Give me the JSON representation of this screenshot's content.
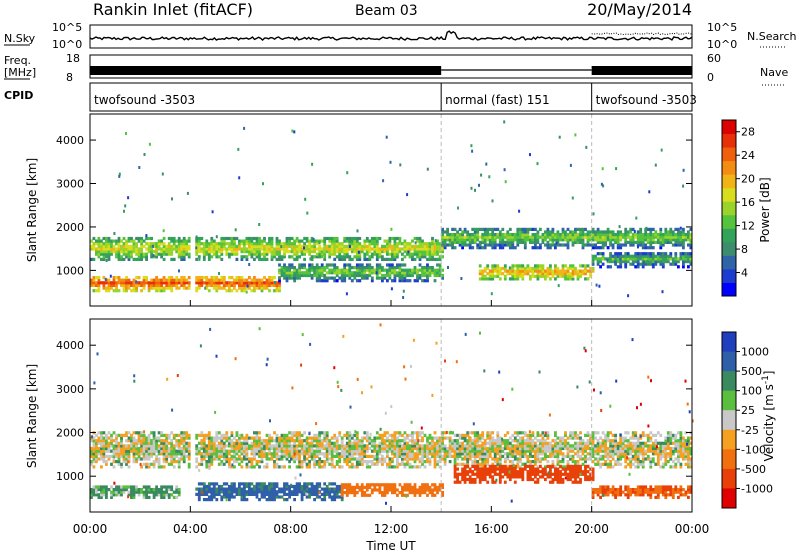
{
  "header": {
    "station": "Rankin Inlet (fitACF)",
    "beam": "Beam 03",
    "date": "20/May/2014"
  },
  "strips": {
    "nsky_label": "N.Sky",
    "nsearch_label": "N.Search",
    "nsky_ticks": [
      "10^5",
      "10^0"
    ],
    "nsearch_ticks": [
      "10^5",
      "10^0"
    ],
    "freq_label_line1": "Freq.",
    "freq_label_line2": "[MHz]",
    "freq_ticks": [
      "18",
      "8"
    ],
    "nave_label": "Nave",
    "nave_ticks": [
      "60",
      "0"
    ],
    "cpid_label": "CPID",
    "cpid_segments": [
      {
        "name": "twofsound -3503",
        "start_hour": 0,
        "end_hour": 14
      },
      {
        "name": "normal (fast) 151",
        "start_hour": 14,
        "end_hour": 20
      },
      {
        "name": "twofsound -3503",
        "start_hour": 20,
        "end_hour": 24
      }
    ]
  },
  "chart_data": [
    {
      "type": "heatmap",
      "panel": "power",
      "ylabel": "Slant Range [km]",
      "xlabel": "",
      "xlim": [
        0,
        24
      ],
      "ylim": [
        180,
        4600
      ],
      "ytick_labels": [
        "1000",
        "2000",
        "3000",
        "4000"
      ],
      "xtick_labels": [
        "00:00",
        "04:00",
        "08:00",
        "12:00",
        "16:00",
        "20:00",
        "00:00"
      ],
      "colorbar": {
        "label": "Power [dB]",
        "ticks": [
          "4",
          "8",
          "12",
          "16",
          "20",
          "24",
          "28"
        ],
        "range": [
          0,
          30
        ],
        "colors": [
          "#0000ff",
          "#1c3cd0",
          "#2f64a8",
          "#3c8c6e",
          "#33a35a",
          "#55c43c",
          "#9ad42a",
          "#d8dd1e",
          "#f0b418",
          "#f58c12",
          "#f0600c",
          "#e83008",
          "#dc0000"
        ]
      },
      "bands": [
        {
          "start_hour": 0.0,
          "end_hour": 14.0,
          "center_km": 1550,
          "half_width_km": 260,
          "power_db": 18
        },
        {
          "start_hour": 14.0,
          "end_hour": 24.0,
          "center_km": 1800,
          "half_width_km": 240,
          "power_db": 14
        },
        {
          "start_hour": 0.0,
          "end_hour": 7.5,
          "center_km": 750,
          "half_width_km": 180,
          "power_db": 26
        },
        {
          "start_hour": 7.5,
          "end_hour": 14.0,
          "center_km": 1000,
          "half_width_km": 200,
          "power_db": 14
        },
        {
          "start_hour": 15.5,
          "end_hour": 20.0,
          "center_km": 1000,
          "half_width_km": 160,
          "power_db": 22
        },
        {
          "start_hour": 20.0,
          "end_hour": 24.0,
          "center_km": 1300,
          "half_width_km": 180,
          "power_db": 12
        }
      ]
    },
    {
      "type": "heatmap",
      "panel": "velocity",
      "ylabel": "Slant Range [km]",
      "xlabel": "Time UT",
      "xlim": [
        0,
        24
      ],
      "ylim": [
        180,
        4600
      ],
      "ytick_labels": [
        "1000",
        "2000",
        "3000",
        "4000"
      ],
      "xtick_labels": [
        "00:00",
        "04:00",
        "08:00",
        "12:00",
        "16:00",
        "20:00",
        "00:00"
      ],
      "colorbar": {
        "label": "Velocity [m s^-1]",
        "ticks": [
          "1000",
          "500",
          "100",
          "25",
          "-25",
          "-100",
          "-500",
          "-1000"
        ],
        "colors": [
          "#1f3fbf",
          "#2e5fa8",
          "#3a8a60",
          "#5abf3e",
          "#c8c8c8",
          "#f5a020",
          "#f07010",
          "#e84008",
          "#e00000"
        ]
      },
      "bands": [
        {
          "start_hour": 0.0,
          "end_hour": 24.0,
          "center_km": 1650,
          "half_width_km": 400,
          "velocity": 0
        },
        {
          "start_hour": 0.0,
          "end_hour": 3.5,
          "center_km": 700,
          "half_width_km": 150,
          "velocity": 80
        },
        {
          "start_hour": 4.0,
          "end_hour": 10.0,
          "center_km": 700,
          "half_width_km": 200,
          "velocity": 300
        },
        {
          "start_hour": 10.0,
          "end_hour": 14.0,
          "center_km": 750,
          "half_width_km": 150,
          "velocity": -300
        },
        {
          "start_hour": 14.5,
          "end_hour": 20.0,
          "center_km": 1100,
          "half_width_km": 200,
          "velocity": -500
        },
        {
          "start_hour": 20.0,
          "end_hour": 24.0,
          "center_km": 700,
          "half_width_km": 150,
          "velocity": -400
        }
      ]
    }
  ]
}
